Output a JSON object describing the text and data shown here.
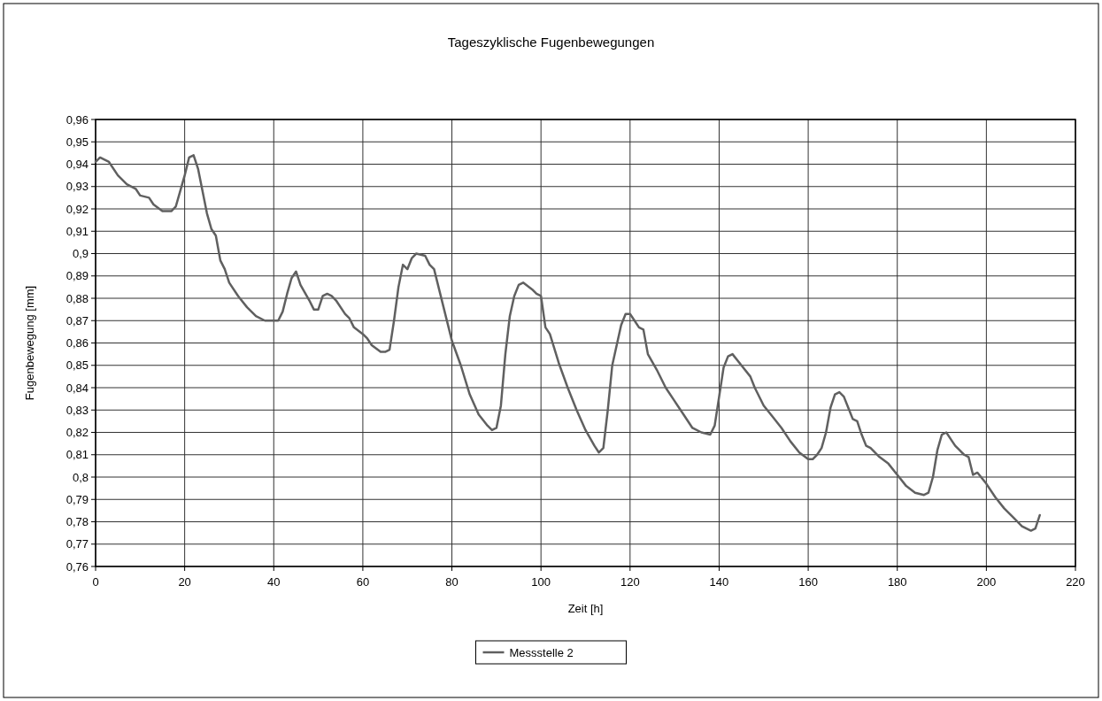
{
  "chart_data": {
    "type": "line",
    "title": "Tageszyklische Fugenbewegungen",
    "xlabel": "Zeit [h]",
    "ylabel": "Fugenbewegung [mm]",
    "xlim": [
      0,
      220
    ],
    "xticks": [
      0,
      20,
      40,
      60,
      80,
      100,
      120,
      140,
      160,
      180,
      200,
      220
    ],
    "ylim": [
      0.76,
      0.96
    ],
    "yticks": [
      {
        "value": 0.76,
        "label": "0,76"
      },
      {
        "value": 0.77,
        "label": "0,77"
      },
      {
        "value": 0.78,
        "label": "0,78"
      },
      {
        "value": 0.79,
        "label": "0,79"
      },
      {
        "value": 0.8,
        "label": "0,8"
      },
      {
        "value": 0.81,
        "label": "0,81"
      },
      {
        "value": 0.82,
        "label": "0,82"
      },
      {
        "value": 0.83,
        "label": "0,83"
      },
      {
        "value": 0.84,
        "label": "0,84"
      },
      {
        "value": 0.85,
        "label": "0,85"
      },
      {
        "value": 0.86,
        "label": "0,86"
      },
      {
        "value": 0.87,
        "label": "0,87"
      },
      {
        "value": 0.88,
        "label": "0,88"
      },
      {
        "value": 0.89,
        "label": "0,89"
      },
      {
        "value": 0.9,
        "label": "0,9"
      },
      {
        "value": 0.91,
        "label": "0,91"
      },
      {
        "value": 0.92,
        "label": "0,92"
      },
      {
        "value": 0.93,
        "label": "0,93"
      },
      {
        "value": 0.94,
        "label": "0,94"
      },
      {
        "value": 0.95,
        "label": "0,95"
      },
      {
        "value": 0.96,
        "label": "0,96"
      }
    ],
    "grid": true,
    "legend": "bottom",
    "marker": "none",
    "line_style": "solid",
    "x": [
      0,
      1,
      3,
      5,
      7,
      9,
      10,
      12,
      13,
      15,
      17,
      18,
      19,
      20,
      21,
      22,
      23,
      24,
      25,
      26,
      27,
      28,
      29,
      30,
      32,
      34,
      36,
      38,
      40,
      41,
      42,
      43,
      44,
      45,
      46,
      48,
      49,
      50,
      51,
      52,
      53,
      54,
      56,
      57,
      58,
      60,
      61,
      62,
      64,
      65,
      66,
      67,
      68,
      69,
      70,
      71,
      72,
      74,
      75,
      76,
      77,
      78,
      80,
      82,
      84,
      86,
      88,
      89,
      90,
      91,
      92,
      93,
      94,
      95,
      96,
      98,
      99,
      100,
      101,
      102,
      104,
      106,
      108,
      110,
      112,
      113,
      114,
      115,
      116,
      118,
      119,
      120,
      121,
      122,
      123,
      124,
      126,
      128,
      130,
      132,
      134,
      136,
      138,
      139,
      140,
      141,
      142,
      143,
      145,
      147,
      148,
      150,
      152,
      154,
      156,
      158,
      160,
      161,
      162,
      163,
      164,
      165,
      166,
      167,
      168,
      169,
      170,
      171,
      172,
      173,
      174,
      176,
      178,
      180,
      182,
      184,
      186,
      187,
      188,
      189,
      190,
      191,
      192,
      193,
      194,
      195,
      196,
      197,
      198,
      200,
      202,
      204,
      206,
      208,
      210,
      211,
      212
    ],
    "series": [
      {
        "name": "Messstelle 2",
        "color": "#606060",
        "values": [
          0.941,
          0.943,
          0.941,
          0.935,
          0.931,
          0.929,
          0.926,
          0.925,
          0.922,
          0.919,
          0.919,
          0.921,
          0.928,
          0.935,
          0.943,
          0.944,
          0.938,
          0.928,
          0.918,
          0.911,
          0.908,
          0.897,
          0.893,
          0.887,
          0.881,
          0.876,
          0.872,
          0.87,
          0.87,
          0.87,
          0.874,
          0.882,
          0.889,
          0.892,
          0.886,
          0.879,
          0.875,
          0.875,
          0.881,
          0.882,
          0.881,
          0.879,
          0.873,
          0.871,
          0.867,
          0.864,
          0.862,
          0.859,
          0.856,
          0.856,
          0.857,
          0.87,
          0.885,
          0.895,
          0.893,
          0.898,
          0.9,
          0.899,
          0.895,
          0.893,
          0.885,
          0.877,
          0.861,
          0.85,
          0.837,
          0.828,
          0.823,
          0.821,
          0.822,
          0.832,
          0.855,
          0.872,
          0.881,
          0.886,
          0.887,
          0.884,
          0.882,
          0.881,
          0.867,
          0.864,
          0.851,
          0.84,
          0.83,
          0.821,
          0.814,
          0.811,
          0.813,
          0.83,
          0.85,
          0.868,
          0.873,
          0.873,
          0.87,
          0.867,
          0.866,
          0.855,
          0.848,
          0.84,
          0.834,
          0.828,
          0.822,
          0.82,
          0.819,
          0.823,
          0.836,
          0.849,
          0.854,
          0.855,
          0.85,
          0.845,
          0.84,
          0.832,
          0.827,
          0.822,
          0.816,
          0.811,
          0.808,
          0.808,
          0.81,
          0.813,
          0.82,
          0.831,
          0.837,
          0.838,
          0.836,
          0.831,
          0.826,
          0.825,
          0.819,
          0.814,
          0.813,
          0.809,
          0.806,
          0.801,
          0.796,
          0.793,
          0.792,
          0.793,
          0.8,
          0.812,
          0.819,
          0.82,
          0.817,
          0.814,
          0.812,
          0.81,
          0.809,
          0.801,
          0.802,
          0.797,
          0.791,
          0.786,
          0.782,
          0.778,
          0.776,
          0.777,
          0.783
        ]
      }
    ]
  }
}
